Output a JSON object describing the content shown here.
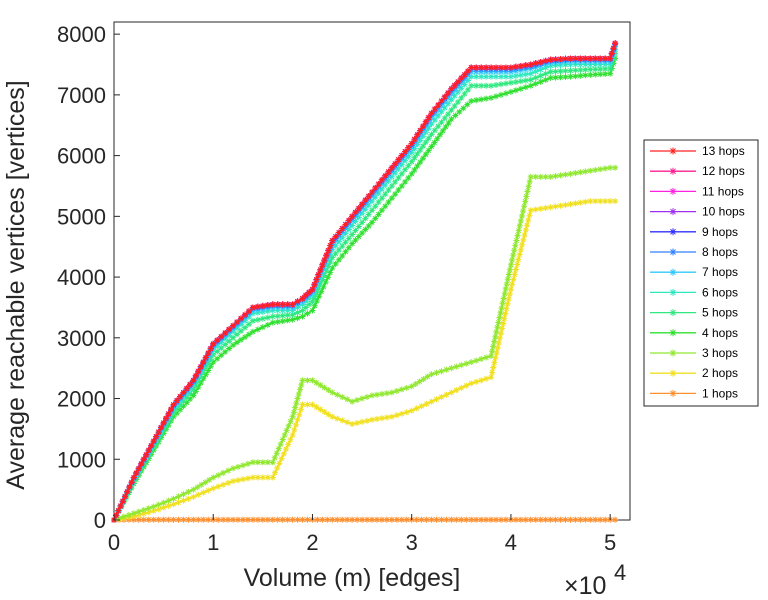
{
  "chart_data": {
    "type": "line",
    "xlabel": "Volume (m) [edges]",
    "ylabel": "Average reachable vertices [vertices]",
    "x_exponent_label": "×10",
    "x_exponent_power": "4",
    "xlim": [
      0,
      52000
    ],
    "ylim": [
      0,
      8200
    ],
    "xticks": [
      0,
      10000,
      20000,
      30000,
      40000,
      50000
    ],
    "xtick_labels": [
      "0",
      "1",
      "2",
      "3",
      "4",
      "5"
    ],
    "yticks": [
      0,
      1000,
      2000,
      3000,
      4000,
      5000,
      6000,
      7000,
      8000
    ],
    "ytick_labels": [
      "0",
      "1000",
      "2000",
      "3000",
      "4000",
      "5000",
      "6000",
      "7000",
      "8000"
    ],
    "grid": false,
    "legend_position": "right",
    "x": [
      0,
      2000,
      4000,
      6000,
      8000,
      10000,
      12000,
      14000,
      16000,
      18000,
      19000,
      20000,
      22000,
      24000,
      26000,
      28000,
      30000,
      32000,
      34000,
      36000,
      38000,
      40000,
      42000,
      44000,
      46000,
      48000,
      50000,
      50500
    ],
    "series": [
      {
        "name": "13 hops",
        "color": "#ff2020",
        "values": [
          0,
          700,
          1300,
          1900,
          2300,
          2900,
          3200,
          3500,
          3550,
          3550,
          3650,
          3800,
          4600,
          5000,
          5400,
          5800,
          6200,
          6700,
          7100,
          7450,
          7450,
          7450,
          7500,
          7580,
          7600,
          7600,
          7600,
          7850
        ]
      },
      {
        "name": "12 hops",
        "color": "#ff2090",
        "values": [
          0,
          700,
          1300,
          1900,
          2300,
          2900,
          3200,
          3500,
          3550,
          3550,
          3650,
          3800,
          4600,
          5000,
          5400,
          5800,
          6200,
          6700,
          7100,
          7450,
          7450,
          7450,
          7500,
          7580,
          7600,
          7600,
          7600,
          7850
        ]
      },
      {
        "name": "11 hops",
        "color": "#ff20e0",
        "values": [
          0,
          700,
          1300,
          1900,
          2300,
          2900,
          3200,
          3500,
          3550,
          3550,
          3650,
          3800,
          4600,
          5000,
          5400,
          5800,
          6200,
          6700,
          7100,
          7450,
          7450,
          7450,
          7500,
          7580,
          7600,
          7600,
          7600,
          7850
        ]
      },
      {
        "name": "10 hops",
        "color": "#a030f0",
        "values": [
          0,
          700,
          1300,
          1900,
          2300,
          2900,
          3200,
          3500,
          3550,
          3550,
          3650,
          3800,
          4600,
          5000,
          5400,
          5800,
          6200,
          6700,
          7100,
          7450,
          7450,
          7450,
          7500,
          7580,
          7600,
          7600,
          7600,
          7850
        ]
      },
      {
        "name": "9 hops",
        "color": "#3030ff",
        "values": [
          0,
          700,
          1300,
          1900,
          2300,
          2900,
          3200,
          3500,
          3550,
          3550,
          3650,
          3800,
          4600,
          5000,
          5400,
          5800,
          6200,
          6700,
          7100,
          7450,
          7450,
          7450,
          7500,
          7580,
          7600,
          7600,
          7600,
          7850
        ]
      },
      {
        "name": "8 hops",
        "color": "#3080ff",
        "values": [
          0,
          690,
          1290,
          1880,
          2280,
          2880,
          3180,
          3480,
          3530,
          3530,
          3630,
          3780,
          4570,
          4970,
          5370,
          5770,
          6170,
          6670,
          7070,
          7420,
          7420,
          7420,
          7470,
          7560,
          7580,
          7580,
          7580,
          7830
        ]
      },
      {
        "name": "7 hops",
        "color": "#30c8ff",
        "values": [
          0,
          680,
          1270,
          1860,
          2260,
          2850,
          3150,
          3450,
          3500,
          3500,
          3600,
          3750,
          4530,
          4930,
          5330,
          5730,
          6130,
          6620,
          7020,
          7380,
          7380,
          7380,
          7430,
          7530,
          7550,
          7550,
          7550,
          7800
        ]
      },
      {
        "name": "6 hops",
        "color": "#30e8c0",
        "values": [
          0,
          660,
          1240,
          1820,
          2220,
          2800,
          3100,
          3400,
          3450,
          3450,
          3550,
          3700,
          4450,
          4850,
          5250,
          5650,
          6050,
          6520,
          6920,
          7300,
          7300,
          7300,
          7350,
          7480,
          7500,
          7500,
          7500,
          7750
        ]
      },
      {
        "name": "5 hops",
        "color": "#30e880",
        "values": [
          0,
          640,
          1200,
          1760,
          2150,
          2720,
          3000,
          3280,
          3350,
          3380,
          3450,
          3600,
          4320,
          4700,
          5100,
          5500,
          5900,
          6350,
          6750,
          7150,
          7150,
          7200,
          7250,
          7380,
          7400,
          7420,
          7430,
          7680
        ]
      },
      {
        "name": "4 hops",
        "color": "#30e030",
        "values": [
          0,
          600,
          1150,
          1700,
          2050,
          2600,
          2880,
          3100,
          3250,
          3300,
          3350,
          3450,
          4150,
          4550,
          4900,
          5300,
          5700,
          6150,
          6600,
          6900,
          6950,
          7050,
          7150,
          7280,
          7300,
          7330,
          7350,
          7600
        ]
      },
      {
        "name": "3 hops",
        "color": "#90e830",
        "values": [
          0,
          110,
          220,
          350,
          500,
          700,
          850,
          950,
          950,
          1700,
          2300,
          2300,
          2100,
          1950,
          2050,
          2100,
          2200,
          2400,
          2500,
          2600,
          2700,
          4200,
          5650,
          5650,
          5700,
          5750,
          5800,
          5800
        ]
      },
      {
        "name": "2 hops",
        "color": "#f0e020",
        "values": [
          0,
          60,
          150,
          260,
          380,
          520,
          640,
          700,
          700,
          1400,
          1900,
          1900,
          1700,
          1580,
          1650,
          1700,
          1800,
          1950,
          2100,
          2250,
          2350,
          3800,
          5100,
          5150,
          5200,
          5250,
          5250,
          5250
        ]
      },
      {
        "name": "1 hops",
        "color": "#ff9030",
        "values": [
          0,
          5,
          5,
          5,
          5,
          5,
          5,
          5,
          5,
          5,
          5,
          5,
          5,
          5,
          5,
          5,
          5,
          5,
          5,
          5,
          5,
          5,
          5,
          5,
          5,
          5,
          5,
          5
        ]
      }
    ]
  }
}
